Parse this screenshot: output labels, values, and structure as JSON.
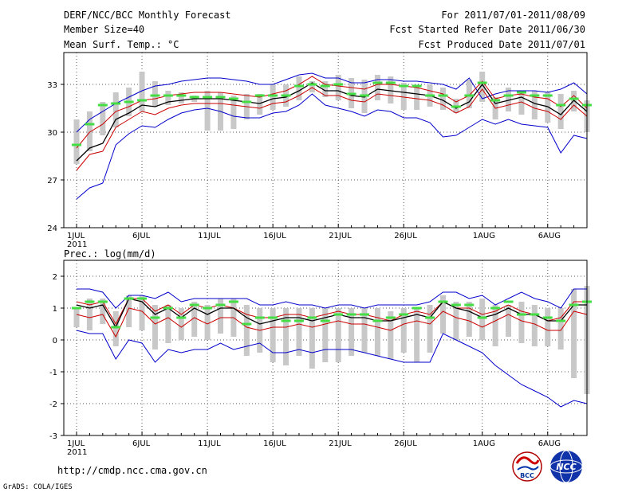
{
  "header": {
    "title": "DERF/NCC/BCC Monthly Forecast",
    "member_size": "Member Size=40",
    "variable": "Mean Surf. Temp.: °C",
    "period": "For 2011/07/01-2011/08/09",
    "fcst_started": "Fcst Started Refer Date 2011/06/30",
    "fcst_produced": "Fcst Produced Date 2011/07/01"
  },
  "footer": {
    "url": "http://cmdp.ncc.cma.gov.cn",
    "grads": "GrADS: COLA/IGES",
    "logo_bcc": "BCC",
    "logo_ncc": "NCC"
  },
  "colors": {
    "max_min": "#0000cc",
    "spread": "#cc0000",
    "mean": "#000000",
    "bar": "#c8c8c8",
    "median": "#44dd44",
    "grid": "#555555"
  },
  "chart_data": [
    {
      "type": "line",
      "title": "Mean Surf. Temp.: °C",
      "x_label_ticks": [
        "1JUL",
        "6JUL",
        "11JUL",
        "16JUL",
        "21JUL",
        "26JUL",
        "1AUG",
        "6AUG"
      ],
      "x_label_days": [
        1,
        6,
        11,
        16,
        21,
        26,
        32,
        37
      ],
      "x_year_label": "2011",
      "ylim": [
        24,
        35
      ],
      "yticks": [
        24,
        27,
        30,
        33
      ],
      "days": [
        1,
        2,
        3,
        4,
        5,
        6,
        7,
        8,
        9,
        10,
        11,
        12,
        13,
        14,
        15,
        16,
        17,
        18,
        19,
        20,
        21,
        22,
        23,
        24,
        25,
        26,
        27,
        28,
        29,
        30,
        31,
        32,
        33,
        34,
        35,
        36,
        37,
        38,
        39,
        40
      ],
      "series": [
        {
          "name": "max",
          "values": [
            30.0,
            30.8,
            31.3,
            31.8,
            32.2,
            32.6,
            32.9,
            33.0,
            33.2,
            33.3,
            33.4,
            33.4,
            33.3,
            33.2,
            33.0,
            33.0,
            33.3,
            33.6,
            33.7,
            33.4,
            33.4,
            33.1,
            33.1,
            33.3,
            33.3,
            33.2,
            33.2,
            33.1,
            33.0,
            32.7,
            33.4,
            32.1,
            32.4,
            32.6,
            32.6,
            32.6,
            32.5,
            32.7,
            33.1,
            32.4
          ]
        },
        {
          "name": "spread_upper",
          "values": [
            29.0,
            30.0,
            30.5,
            31.3,
            31.6,
            32.0,
            32.1,
            32.3,
            32.4,
            32.5,
            32.5,
            32.5,
            32.4,
            32.3,
            32.2,
            32.4,
            32.6,
            33.0,
            33.5,
            33.0,
            32.9,
            32.8,
            32.7,
            33.0,
            33.0,
            32.9,
            32.8,
            32.6,
            32.4,
            31.9,
            32.3,
            33.2,
            32.1,
            32.3,
            32.4,
            32.2,
            32.1,
            31.6,
            32.3,
            31.5
          ]
        },
        {
          "name": "mean",
          "values": [
            28.2,
            29.0,
            29.3,
            30.8,
            31.2,
            31.7,
            31.6,
            31.9,
            32.0,
            32.1,
            32.1,
            32.1,
            32.0,
            31.9,
            31.8,
            32.1,
            32.2,
            32.6,
            33.1,
            32.6,
            32.6,
            32.3,
            32.2,
            32.7,
            32.6,
            32.5,
            32.4,
            32.3,
            32.0,
            31.5,
            31.9,
            33.0,
            31.8,
            32.0,
            32.2,
            31.8,
            31.6,
            31.1,
            32.0,
            31.3
          ]
        },
        {
          "name": "spread_lower",
          "values": [
            27.6,
            28.6,
            28.8,
            30.3,
            30.8,
            31.3,
            31.1,
            31.5,
            31.7,
            31.8,
            31.8,
            31.8,
            31.7,
            31.6,
            31.5,
            31.8,
            31.9,
            32.3,
            32.8,
            32.3,
            32.3,
            32.0,
            31.9,
            32.4,
            32.3,
            32.2,
            32.1,
            32.0,
            31.7,
            31.2,
            31.6,
            32.7,
            31.5,
            31.7,
            31.9,
            31.5,
            31.3,
            30.8,
            31.7,
            31.0
          ]
        },
        {
          "name": "min",
          "values": [
            25.8,
            26.5,
            26.8,
            29.2,
            29.9,
            30.4,
            30.3,
            30.8,
            31.2,
            31.4,
            31.5,
            31.3,
            31.0,
            30.9,
            30.9,
            31.2,
            31.3,
            31.7,
            32.4,
            31.7,
            31.5,
            31.3,
            31.0,
            31.4,
            31.3,
            30.9,
            30.9,
            30.6,
            29.7,
            29.8,
            30.3,
            30.8,
            30.5,
            30.8,
            30.5,
            30.4,
            30.3,
            28.7,
            29.8,
            29.6
          ]
        }
      ],
      "bars": {
        "low": [
          28.0,
          28.8,
          29.8,
          30.3,
          31.0,
          31.3,
          31.6,
          31.7,
          31.8,
          31.9,
          30.1,
          30.1,
          30.2,
          30.8,
          31.1,
          31.4,
          31.6,
          32.0,
          32.5,
          32.2,
          32.0,
          31.5,
          31.2,
          32.0,
          31.8,
          31.4,
          31.4,
          31.6,
          31.4,
          31.2,
          31.5,
          31.9,
          30.8,
          31.3,
          31.1,
          30.8,
          30.6,
          30.2,
          31.3,
          30.0
        ],
        "high": [
          30.8,
          31.3,
          31.9,
          32.5,
          32.8,
          33.8,
          33.2,
          32.6,
          32.5,
          32.3,
          32.6,
          32.5,
          32.3,
          32.4,
          32.4,
          33.0,
          33.0,
          33.5,
          33.2,
          33.2,
          33.6,
          33.4,
          33.3,
          33.6,
          33.5,
          33.1,
          32.9,
          33.0,
          32.8,
          32.1,
          33.3,
          33.8,
          32.2,
          32.8,
          32.6,
          32.6,
          32.5,
          32.4,
          32.6,
          32.0
        ]
      },
      "median": [
        29.2,
        30.5,
        31.7,
        31.8,
        31.9,
        32.0,
        32.3,
        32.3,
        32.3,
        32.2,
        32.2,
        32.2,
        32.1,
        31.9,
        32.3,
        32.3,
        32.3,
        32.9,
        33.0,
        32.9,
        33.0,
        32.4,
        32.3,
        33.1,
        33.1,
        32.9,
        32.9,
        32.3,
        32.3,
        31.6,
        32.3,
        33.1,
        32.0,
        32.3,
        32.5,
        32.3,
        32.3,
        31.7,
        32.1,
        31.7
      ]
    },
    {
      "type": "line",
      "title": "Prec.: log(mm/d)",
      "x_label_ticks": [
        "1JUL",
        "6JUL",
        "11JUL",
        "16JUL",
        "21JUL",
        "26JUL",
        "1AUG",
        "6AUG"
      ],
      "x_label_days": [
        1,
        6,
        11,
        16,
        21,
        26,
        32,
        37
      ],
      "x_year_label": "2011",
      "ylim": [
        -3,
        2.5
      ],
      "yticks": [
        -3,
        -2,
        -1,
        0,
        1,
        2
      ],
      "days": [
        1,
        2,
        3,
        4,
        5,
        6,
        7,
        8,
        9,
        10,
        11,
        12,
        13,
        14,
        15,
        16,
        17,
        18,
        19,
        20,
        21,
        22,
        23,
        24,
        25,
        26,
        27,
        28,
        29,
        30,
        31,
        32,
        33,
        34,
        35,
        36,
        37,
        38,
        39,
        40
      ],
      "series": [
        {
          "name": "max",
          "values": [
            1.6,
            1.6,
            1.5,
            1.0,
            1.4,
            1.4,
            1.3,
            1.5,
            1.2,
            1.3,
            1.3,
            1.3,
            1.3,
            1.3,
            1.1,
            1.1,
            1.2,
            1.1,
            1.1,
            1.0,
            1.1,
            1.1,
            1.0,
            1.1,
            1.1,
            1.1,
            1.1,
            1.2,
            1.5,
            1.5,
            1.3,
            1.4,
            1.1,
            1.3,
            1.5,
            1.3,
            1.2,
            1.0,
            1.6,
            1.6
          ]
        },
        {
          "name": "spread_upper",
          "values": [
            1.2,
            1.1,
            1.2,
            0.5,
            1.3,
            1.3,
            0.9,
            1.1,
            0.8,
            1.1,
            1.0,
            1.1,
            1.0,
            0.8,
            0.7,
            0.7,
            0.8,
            0.8,
            0.7,
            0.8,
            0.9,
            0.8,
            0.8,
            0.7,
            0.6,
            0.8,
            0.9,
            0.8,
            1.2,
            1.0,
            1.0,
            0.8,
            0.9,
            1.1,
            0.9,
            0.8,
            0.6,
            0.7,
            1.2,
            1.2
          ]
        },
        {
          "name": "mean",
          "values": [
            1.1,
            1.0,
            1.1,
            0.4,
            1.3,
            1.2,
            0.8,
            1.0,
            0.7,
            1.0,
            0.8,
            1.0,
            1.0,
            0.7,
            0.5,
            0.6,
            0.7,
            0.7,
            0.6,
            0.7,
            0.8,
            0.7,
            0.7,
            0.6,
            0.6,
            0.7,
            0.8,
            0.7,
            1.2,
            1.0,
            0.9,
            0.7,
            0.8,
            1.0,
            0.8,
            0.8,
            0.6,
            0.6,
            1.1,
            1.1
          ]
        },
        {
          "name": "spread_lower",
          "values": [
            0.8,
            0.7,
            0.8,
            0.1,
            1.0,
            0.9,
            0.5,
            0.7,
            0.4,
            0.7,
            0.5,
            0.7,
            0.7,
            0.4,
            0.3,
            0.4,
            0.4,
            0.5,
            0.4,
            0.5,
            0.6,
            0.5,
            0.5,
            0.4,
            0.3,
            0.5,
            0.6,
            0.5,
            0.9,
            0.7,
            0.6,
            0.4,
            0.6,
            0.8,
            0.6,
            0.5,
            0.3,
            0.3,
            0.9,
            0.8
          ]
        },
        {
          "name": "min",
          "values": [
            0.3,
            0.2,
            0.2,
            -0.6,
            0.0,
            -0.1,
            -0.7,
            -0.3,
            -0.4,
            -0.3,
            -0.3,
            -0.1,
            -0.3,
            -0.2,
            -0.1,
            -0.4,
            -0.4,
            -0.3,
            -0.4,
            -0.3,
            -0.3,
            -0.3,
            -0.4,
            -0.5,
            -0.6,
            -0.7,
            -0.7,
            -0.7,
            0.2,
            0.0,
            -0.2,
            -0.4,
            -0.8,
            -1.1,
            -1.4,
            -1.6,
            -1.8,
            -2.1,
            -1.9,
            -2.0
          ]
        }
      ],
      "bars": {
        "low": [
          0.4,
          0.3,
          0.5,
          -0.2,
          0.4,
          0.3,
          -0.3,
          -0.1,
          0.0,
          0.1,
          0.0,
          0.2,
          0.1,
          -0.5,
          -0.4,
          -0.7,
          -0.8,
          -0.5,
          -0.9,
          -0.7,
          -0.7,
          -0.5,
          -0.4,
          -0.5,
          -0.6,
          -0.4,
          -0.7,
          -0.4,
          0.2,
          0.0,
          0.1,
          0.0,
          -0.2,
          0.1,
          -0.1,
          -0.2,
          -0.2,
          -0.3,
          -1.2,
          -1.7
        ],
        "high": [
          1.0,
          1.3,
          1.3,
          0.9,
          1.4,
          1.4,
          1.1,
          1.1,
          1.0,
          1.2,
          1.1,
          1.3,
          1.3,
          1.1,
          1.0,
          1.0,
          1.0,
          1.0,
          1.0,
          1.0,
          1.0,
          1.0,
          1.0,
          1.0,
          0.9,
          1.0,
          1.0,
          1.1,
          1.4,
          1.2,
          1.2,
          1.3,
          1.1,
          1.1,
          1.2,
          1.1,
          1.0,
          1.0,
          1.6,
          1.7
        ]
      },
      "median": [
        1.0,
        1.2,
        1.2,
        0.4,
        1.3,
        1.3,
        0.7,
        1.0,
        0.7,
        1.1,
        1.0,
        1.1,
        1.2,
        0.5,
        0.7,
        0.7,
        0.6,
        0.6,
        0.7,
        0.6,
        0.8,
        0.8,
        0.8,
        0.6,
        0.7,
        0.8,
        1.0,
        0.7,
        1.2,
        1.1,
        1.1,
        0.7,
        1.0,
        1.2,
        0.8,
        0.8,
        0.7,
        0.6,
        1.1,
        1.2
      ]
    }
  ]
}
